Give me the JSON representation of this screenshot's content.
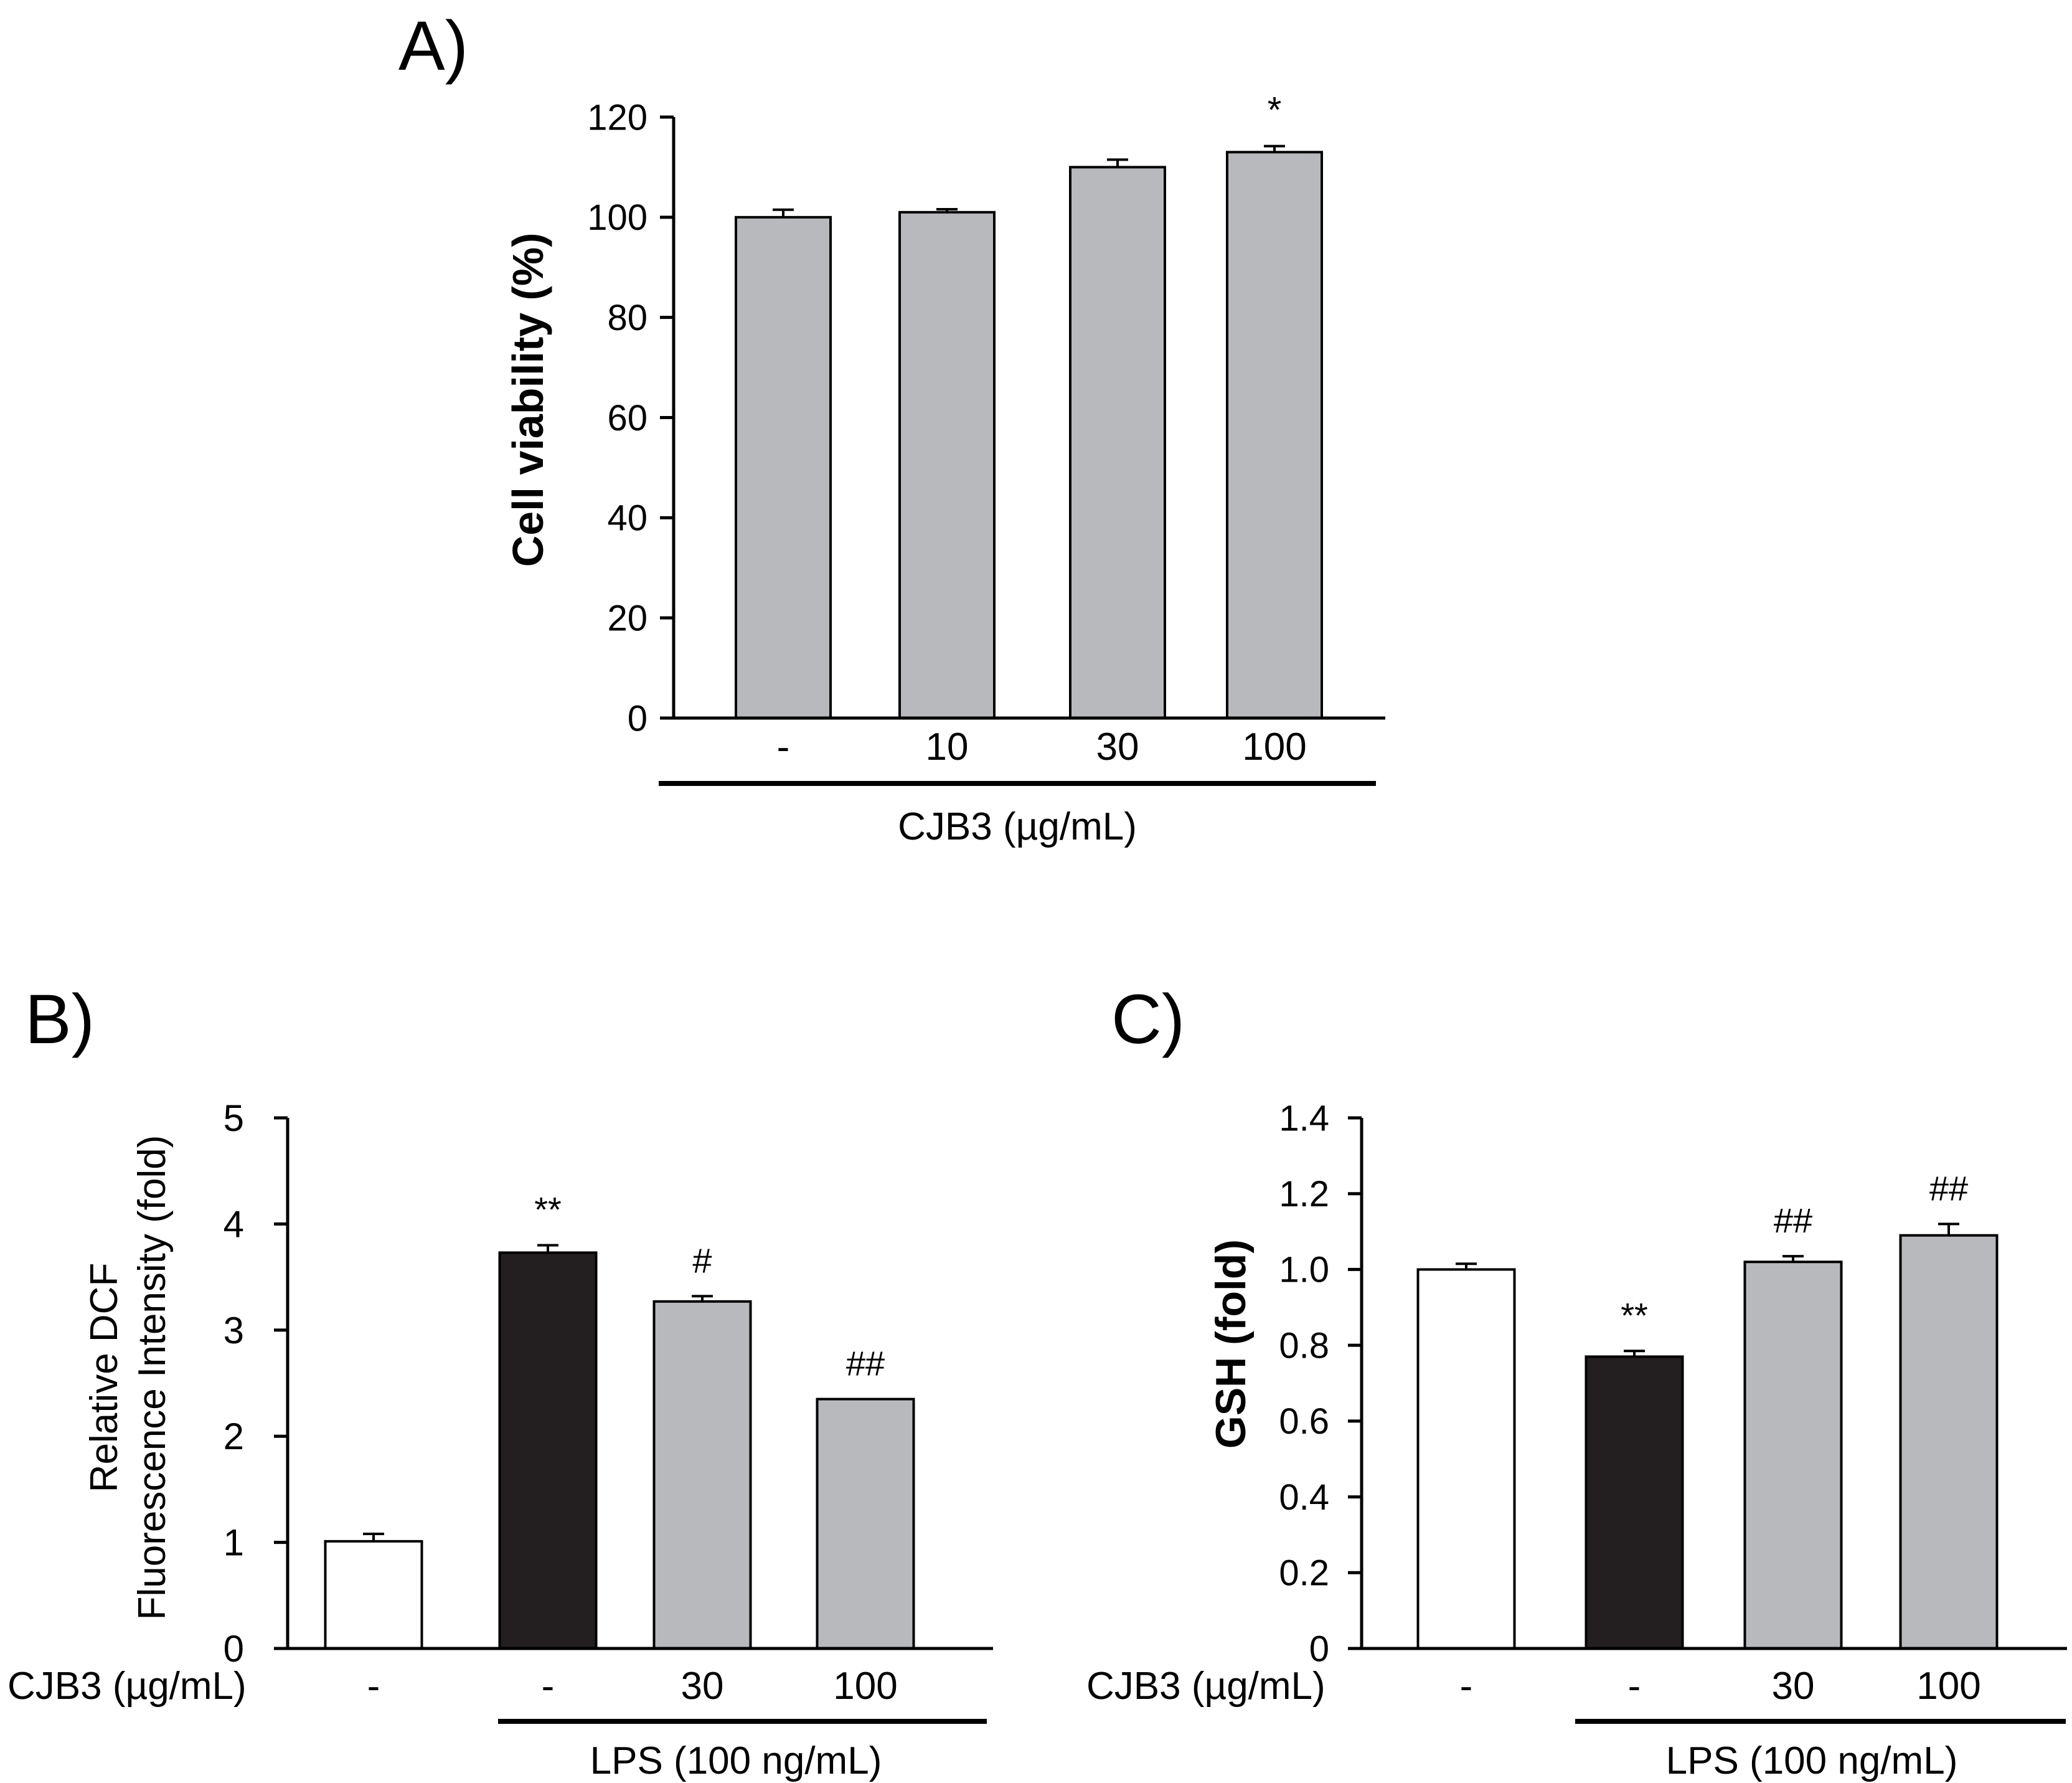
{
  "colors": {
    "white_bar": "#ffffff",
    "black_bar": "#231f20",
    "gray_bar": "#b8b9bc",
    "stroke": "#000000"
  },
  "chart_data": [
    {
      "id": "A",
      "panel_label": "A)",
      "type": "bar",
      "ylabel": "Cell viability (%)",
      "ylim": [
        0,
        120
      ],
      "yticks": [
        "0",
        "20",
        "40",
        "60",
        "80",
        "100",
        "120"
      ],
      "categories": [
        "-",
        "10",
        "30",
        "100"
      ],
      "values": [
        100,
        101,
        110,
        113
      ],
      "errors": [
        1.5,
        0.6,
        1.5,
        1.2
      ],
      "fills": [
        "gray",
        "gray",
        "gray",
        "gray"
      ],
      "annotations": [
        "",
        "",
        "",
        "*"
      ],
      "row_label": "",
      "group_label": "CJB3 (µg/mL)",
      "group_span": [
        0,
        3
      ]
    },
    {
      "id": "B",
      "panel_label": "B)",
      "type": "bar",
      "ylabel_lines": [
        "Relative DCF",
        "Fluorescence Intensity (fold)"
      ],
      "ylim": [
        0,
        5
      ],
      "yticks": [
        "0",
        "1",
        "2",
        "3",
        "4",
        "5"
      ],
      "categories": [
        "-",
        "-",
        "30",
        "100"
      ],
      "values": [
        1.01,
        3.73,
        3.27,
        2.35
      ],
      "errors": [
        0.07,
        0.07,
        0.05,
        0.0
      ],
      "fills": [
        "white",
        "black",
        "gray",
        "gray"
      ],
      "annotations": [
        "",
        "**",
        "#",
        "##"
      ],
      "row_label": "CJB3 (µg/mL)",
      "group_label": "LPS (100 ng/mL)",
      "group_span": [
        1,
        3
      ]
    },
    {
      "id": "C",
      "panel_label": "C)",
      "type": "bar",
      "ylabel": "GSH (fold)",
      "ylim": [
        0,
        1.4
      ],
      "yticks": [
        "0",
        "0.2",
        "0.4",
        "0.6",
        "0.8",
        "1.0",
        "1.2",
        "1.4"
      ],
      "categories": [
        "-",
        "-",
        "30",
        "100"
      ],
      "values": [
        1.0,
        0.77,
        1.02,
        1.09
      ],
      "errors": [
        0.015,
        0.015,
        0.015,
        0.03
      ],
      "fills": [
        "white",
        "black",
        "gray",
        "gray"
      ],
      "annotations": [
        "",
        "**",
        "##",
        "##"
      ],
      "row_label": "CJB3 (µg/mL)",
      "group_label": "LPS (100 ng/mL)",
      "group_span": [
        1,
        3
      ]
    }
  ]
}
